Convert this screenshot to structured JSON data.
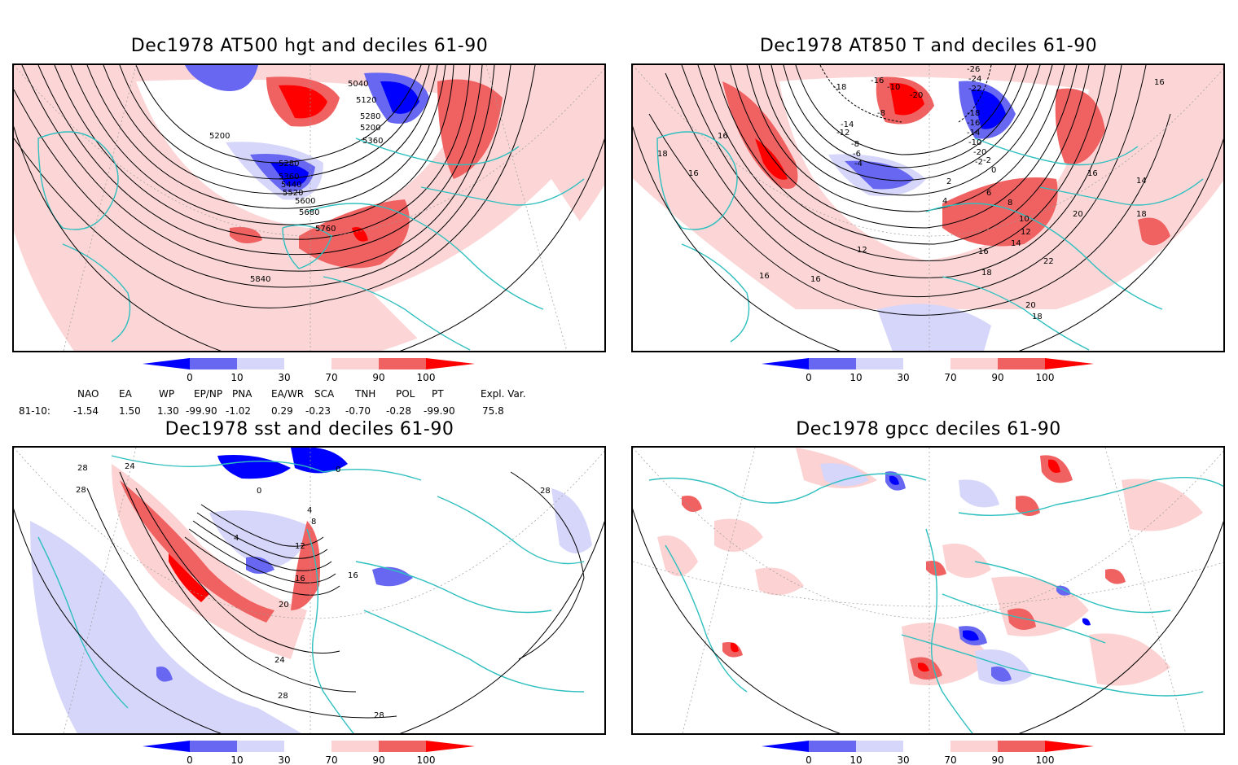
{
  "panels": [
    {
      "id": "z500",
      "title": "Dec1978 AT500 hgt and deciles 61-90",
      "contour_labels": [
        "5040",
        "5120",
        "5200",
        "5280",
        "5360",
        "5200",
        "5280",
        "5360",
        "5440",
        "5520",
        "5600",
        "5680",
        "5760",
        "5840"
      ]
    },
    {
      "id": "t850",
      "title": "Dec1978 AT850 T and deciles 61-90",
      "contour_labels": [
        "-18",
        "-26",
        "-24",
        "-16",
        "-10",
        "-22",
        "-18",
        "-20",
        "-8",
        "-16",
        "-14",
        "-12",
        "-14",
        "-10",
        "-8",
        "-6",
        "-4",
        "-20",
        "-2",
        "0",
        "-2",
        "2",
        "4",
        "6",
        "8",
        "10",
        "12",
        "14",
        "16",
        "18",
        "20",
        "22",
        "16",
        "14",
        "18",
        "16",
        "16",
        "12",
        "16",
        "18",
        "20",
        "18",
        "16",
        "16"
      ]
    },
    {
      "id": "sst",
      "title": "Dec1978 sst and deciles 61-90",
      "contour_labels": [
        "28",
        "24",
        "28",
        "0",
        "0",
        "4",
        "8",
        "4",
        "12",
        "16",
        "16",
        "20",
        "24",
        "28",
        "28",
        "28"
      ]
    },
    {
      "id": "gpcc",
      "title": "Dec1978 gpcc deciles 61-90",
      "contour_labels": []
    }
  ],
  "colorbar": {
    "ticks": [
      "0",
      "10",
      "30",
      "70",
      "90",
      "100"
    ],
    "colors": [
      "#0000ff",
      "#6767f2",
      "#d6d6fa",
      "#ffffff",
      "#fcd2d2",
      "#f06262",
      "#ff0000"
    ]
  },
  "indices": {
    "headers": [
      "NAO",
      "EA",
      "WP",
      "EP/NP",
      "PNA",
      "EA/WR",
      "SCA",
      "TNH",
      "POL",
      "PT",
      "Expl. Var."
    ],
    "row_label": "81-10:",
    "values": [
      "-1.54",
      "1.50",
      "1.30",
      "-99.90",
      "-1.02",
      "0.29",
      "-0.23",
      "-0.70",
      "-0.28",
      "-99.90",
      "75.8"
    ]
  },
  "colors": {
    "coast": "#2fbfbf",
    "frame": "#000000"
  }
}
